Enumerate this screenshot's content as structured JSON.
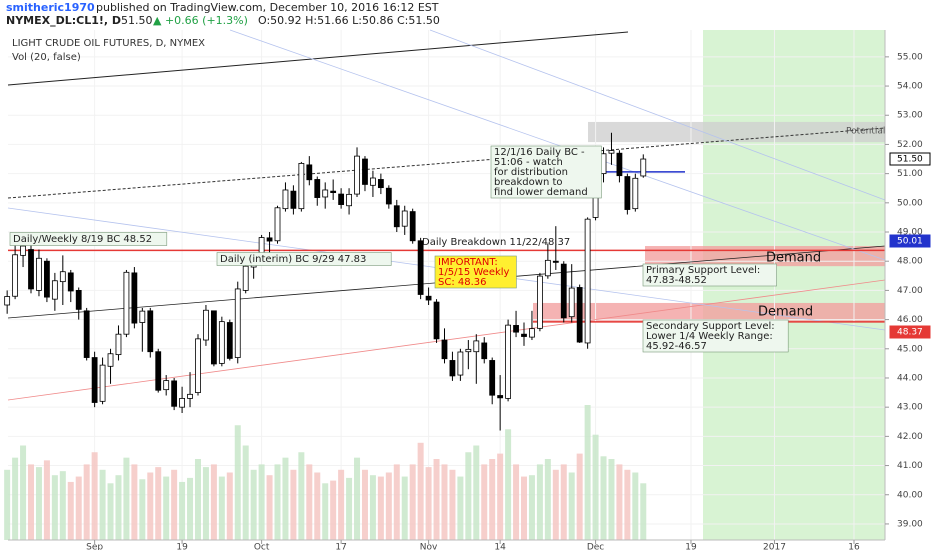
{
  "header": {
    "author": "smitheric1970",
    "published": "published on TradingView.com, December 10, 2016 16:12 EST",
    "symbol": "NYMEX_DL:CL1!, D",
    "last": "51.50",
    "change": "▲ +0.66 (+1.3%)",
    "ohlc": "O:50.92 H:51.66 L:50.86 C:51.50"
  },
  "chart_data": {
    "type": "candlestick",
    "title": "LIGHT CRUDE OIL FUTURES, D, NYMEX",
    "subtitle": "Vol (20, false)",
    "xlim": [
      -0.9,
      110.4
    ],
    "xticks": [
      {
        "value": 11,
        "label": "Sep"
      },
      {
        "value": 22,
        "label": "19"
      },
      {
        "value": 32,
        "label": "Oct"
      },
      {
        "value": 42,
        "label": "17"
      },
      {
        "value": 53,
        "label": "Nov"
      },
      {
        "value": 62,
        "label": "14"
      },
      {
        "value": 74,
        "label": "Dec"
      },
      {
        "value": 86,
        "label": "19"
      },
      {
        "value": 96.5,
        "label": "2017"
      },
      {
        "value": 106.5,
        "label": "16"
      }
    ],
    "ylim": [
      38.45,
      55.92
    ],
    "yticks": [
      {
        "value": 39,
        "label": "39.00"
      },
      {
        "value": 40,
        "label": "40.00"
      },
      {
        "value": 41,
        "label": "41.00"
      },
      {
        "value": 42,
        "label": "42.00"
      },
      {
        "value": 43,
        "label": "43.00"
      },
      {
        "value": 44,
        "label": "44.00"
      },
      {
        "value": 45,
        "label": "45.00"
      },
      {
        "value": 46,
        "label": "46.00"
      },
      {
        "value": 47,
        "label": "47.00"
      },
      {
        "value": 48,
        "label": "48.00"
      },
      {
        "value": 49,
        "label": "49.00"
      },
      {
        "value": 50,
        "label": "50.00"
      },
      {
        "value": 51,
        "label": "51.00"
      },
      {
        "value": 52,
        "label": "52.00"
      },
      {
        "value": 53,
        "label": "53.00"
      },
      {
        "value": 54,
        "label": "54.00"
      },
      {
        "value": 55,
        "label": "55.00"
      }
    ],
    "up_color": "#ffffff",
    "down_color": "#000000",
    "open": [
      46.5,
      46.8,
      48.2,
      48.4,
      47.0,
      48.0,
      46.7,
      47.3,
      47.6,
      47.0,
      46.3,
      44.7,
      43.2,
      44.4,
      44.8,
      45.5,
      47.6,
      45.9,
      46.3,
      44.9,
      43.6,
      43.9,
      43.0,
      43.3,
      43.5,
      45.3,
      46.3,
      44.5,
      45.9,
      44.7,
      47.0,
      47.8,
      48.2,
      48.8,
      48.7,
      49.8,
      50.4,
      49.8,
      51.3,
      50.8,
      50.2,
      50.4,
      50.3,
      49.9,
      50.3,
      51.5,
      50.6,
      50.8,
      50.5,
      49.9,
      49.2,
      49.7,
      48.7,
      46.8,
      46.6,
      45.3,
      44.6,
      44.1,
      44.9,
      44.9,
      45.2,
      44.6,
      43.4,
      43.3,
      45.8,
      45.5,
      45.4,
      45.7,
      47.5,
      48.0,
      47.9,
      46.1,
      47.1,
      45.2,
      49.5,
      51.0,
      51.7,
      51.7,
      50.9,
      49.8,
      50.92
    ],
    "high": [
      47.0,
      48.75,
      48.75,
      48.6,
      48.4,
      48.1,
      47.6,
      48.2,
      47.7,
      47.1,
      46.4,
      44.9,
      44.7,
      45.0,
      45.8,
      47.7,
      47.8,
      46.4,
      46.4,
      45.0,
      44.1,
      44.0,
      43.7,
      44.2,
      45.5,
      46.5,
      46.3,
      46.1,
      46.0,
      47.3,
      47.9,
      48.3,
      48.9,
      49.0,
      49.9,
      50.7,
      50.6,
      51.4,
      51.6,
      50.9,
      50.7,
      50.8,
      50.5,
      50.5,
      51.9,
      51.6,
      51.1,
      51.0,
      50.6,
      50.1,
      49.9,
      49.8,
      48.8,
      47.1,
      46.7,
      45.7,
      44.9,
      45.0,
      45.3,
      45.5,
      45.4,
      44.7,
      44.1,
      46.0,
      46.3,
      45.9,
      46.3,
      47.6,
      48.6,
      49.2,
      48.0,
      47.9,
      47.2,
      49.5,
      51.3,
      51.9,
      52.4,
      51.8,
      51.0,
      51.0,
      51.66
    ],
    "low": [
      46.2,
      46.7,
      47.8,
      46.9,
      46.8,
      46.6,
      46.3,
      46.5,
      46.6,
      46.0,
      44.6,
      43.0,
      43.1,
      43.8,
      44.6,
      45.4,
      45.7,
      44.9,
      44.7,
      43.5,
      43.4,
      42.9,
      42.8,
      43.0,
      43.4,
      45.1,
      44.4,
      44.4,
      44.6,
      44.5,
      46.9,
      47.4,
      47.9,
      48.3,
      48.6,
      49.7,
      49.6,
      49.7,
      50.6,
      49.9,
      49.8,
      50.1,
      49.8,
      49.6,
      50.2,
      50.4,
      50.2,
      50.3,
      49.8,
      49.0,
      48.9,
      48.6,
      46.7,
      46.5,
      45.2,
      44.5,
      43.9,
      43.9,
      44.3,
      43.8,
      44.5,
      43.1,
      42.2,
      43.2,
      45.4,
      45.1,
      45.3,
      45.6,
      47.4,
      47.7,
      45.9,
      45.9,
      45.2,
      45.0,
      49.4,
      50.7,
      51.3,
      50.7,
      49.6,
      49.7,
      50.86
    ],
    "close": [
      46.79,
      48.22,
      48.52,
      47.05,
      48.1,
      46.77,
      47.33,
      47.64,
      46.98,
      46.35,
      44.7,
      43.16,
      44.44,
      44.83,
      45.5,
      47.62,
      45.88,
      46.29,
      44.9,
      43.58,
      43.91,
      43.03,
      43.3,
      43.44,
      45.34,
      46.32,
      44.48,
      45.93,
      44.67,
      47.05,
      47.83,
      48.24,
      48.81,
      48.69,
      49.83,
      50.44,
      49.81,
      51.35,
      50.79,
      50.18,
      50.44,
      50.35,
      49.94,
      50.29,
      51.6,
      50.63,
      50.85,
      50.52,
      49.96,
      49.18,
      49.72,
      48.7,
      46.86,
      46.67,
      45.34,
      44.66,
      44.07,
      44.89,
      44.98,
      45.27,
      44.66,
      43.41,
      43.32,
      45.81,
      45.57,
      45.42,
      45.69,
      47.49,
      48.03,
      47.96,
      46.06,
      47.08,
      45.23,
      49.44,
      51.06,
      51.68,
      51.79,
      50.93,
      49.77,
      50.84,
      51.5
    ],
    "volume": [
      520,
      610,
      700,
      560,
      540,
      590,
      480,
      510,
      430,
      470,
      560,
      650,
      520,
      420,
      480,
      610,
      560,
      450,
      500,
      540,
      470,
      520,
      430,
      460,
      600,
      540,
      560,
      470,
      500,
      850,
      700,
      520,
      560,
      480,
      560,
      610,
      520,
      650,
      560,
      500,
      420,
      440,
      520,
      460,
      610,
      520,
      480,
      470,
      500,
      560,
      470,
      560,
      720,
      540,
      600,
      560,
      520,
      470,
      650,
      700,
      560,
      600,
      640,
      820,
      560,
      470,
      480,
      560,
      600,
      520,
      560,
      500,
      640,
      1000,
      780,
      620,
      600,
      560,
      520,
      500,
      420
    ],
    "volume_up_color": "#c8e6c9",
    "volume_down_color": "#f4c7c3",
    "levels": [
      {
        "value": 48.37,
        "color": "#e53935"
      },
      {
        "value": 45.92,
        "color": "#e53935"
      },
      {
        "value": 51.06,
        "color": "#2233cc"
      }
    ],
    "zones": [
      {
        "low": 47.83,
        "high": 48.52,
        "color": "#f3a0a0"
      },
      {
        "low": 45.92,
        "high": 46.57,
        "color": "#f3a0a0"
      },
      {
        "low": 52.08,
        "high": 52.77,
        "color": "#cfcfcf"
      }
    ],
    "price_labels": [
      "51.50",
      "50.01",
      "48.37"
    ],
    "annotations": [
      {
        "lines": [
          "Daily/Weekly 8/19 BC 48.52"
        ]
      },
      {
        "lines": [
          "Daily (interim) BC 9/29 47.83"
        ]
      },
      {
        "lines": [
          "Daily Breakdown 11/22/48.37"
        ]
      },
      {
        "lines": [
          "IMPORTANT:",
          "1/5/15 Weekly",
          "SC: 48.36"
        ]
      },
      {
        "lines": [
          "12/1/16 Daily BC -",
          "51:06 - watch",
          "for distribution",
          "breakdown to",
          "find lower demand"
        ]
      },
      {
        "lines": [
          "Demand"
        ]
      },
      {
        "lines": [
          "Demand"
        ]
      },
      {
        "lines": [
          "Primary Support Level:",
          "47.83-48.52"
        ]
      },
      {
        "lines": [
          "Secondary Support Level:",
          "Lower 1/4 Weekly Range:",
          "45.92-46.57"
        ]
      },
      {
        "lines": [
          "Potential"
        ]
      }
    ]
  }
}
